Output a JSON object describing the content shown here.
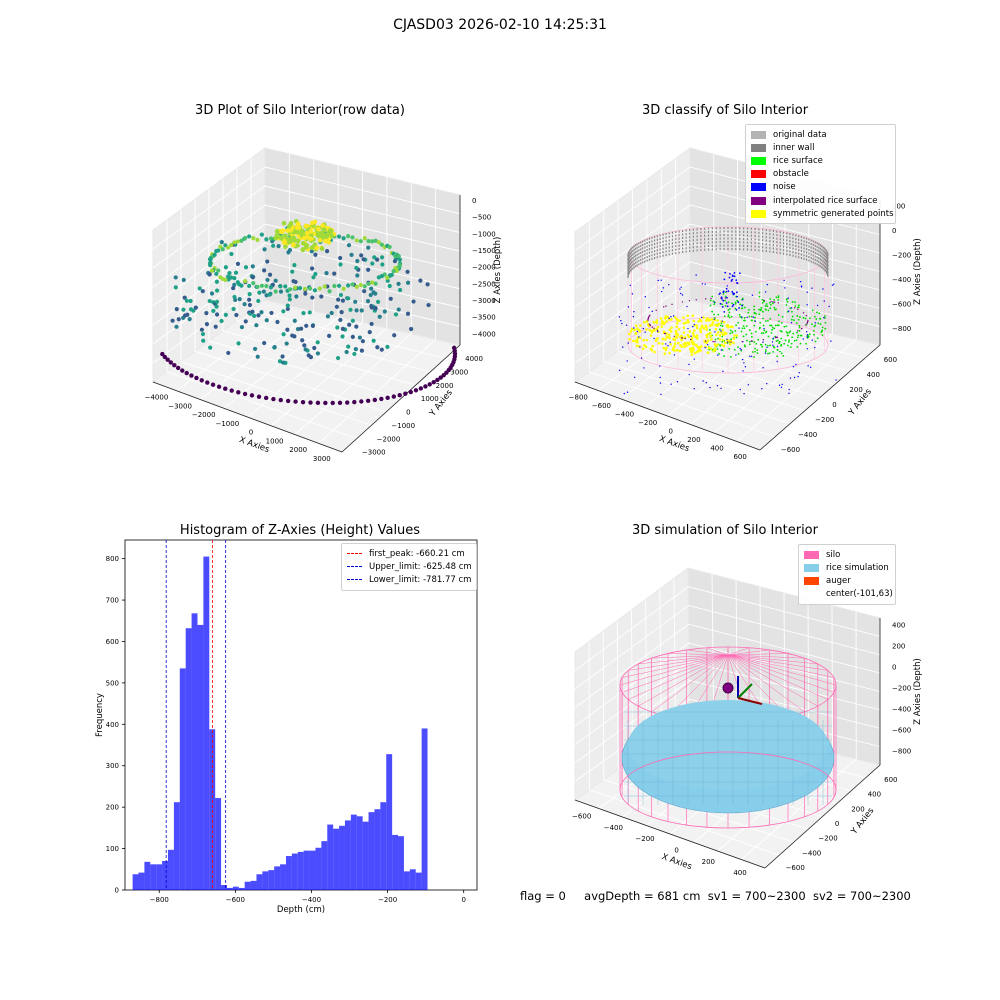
{
  "suptitle": "CJASD03 2026-02-10 14:25:31",
  "panels": {
    "raw": {
      "title": "3D Plot of Silo Interior(row data)",
      "x_label": "X Axies",
      "y_label": "Y Axies",
      "z_label": "Z Axies (Depth)",
      "x_ticks": [
        "−4000",
        "−3000",
        "−2000",
        "−1000",
        "0",
        "1000",
        "2000",
        "3000"
      ],
      "y_ticks": [
        "−3000",
        "−2000",
        "−1000",
        "0",
        "1000",
        "2000",
        "3000",
        "4000"
      ],
      "z_ticks": [
        "0",
        "−500",
        "−1000",
        "−1500",
        "−2000",
        "−2500",
        "−3000",
        "−3500",
        "−4000"
      ]
    },
    "classify": {
      "title": "3D classify of Silo Interior",
      "x_label": "X Axies",
      "y_label": "Y Axies",
      "z_label": "Z Axies (Depth)",
      "x_ticks": [
        "−800",
        "−600",
        "−400",
        "−200",
        "0",
        "200",
        "400",
        "600"
      ],
      "y_ticks": [
        "−600",
        "−400",
        "−200",
        "0",
        "200",
        "400",
        "600"
      ],
      "z_ticks": [
        "200",
        "0",
        "−200",
        "−400",
        "−600",
        "−800"
      ],
      "legend": [
        {
          "label": "original data",
          "color": "#b3b3b3"
        },
        {
          "label": "inner wall",
          "color": "#808080"
        },
        {
          "label": "rice surface",
          "color": "#00ff00"
        },
        {
          "label": "obstacle",
          "color": "#ff0000"
        },
        {
          "label": "noise",
          "color": "#0000ff"
        },
        {
          "label": "interpolated rice surface",
          "color": "#800080"
        },
        {
          "label": "symmetric generated points",
          "color": "#ffff00"
        }
      ]
    },
    "simulation": {
      "title": "3D simulation of Silo Interior",
      "x_label": "X Axies",
      "y_label": "Y Axies",
      "z_label": "Z Axies (Depth)",
      "x_ticks": [
        "−600",
        "−400",
        "−200",
        "0",
        "200",
        "400"
      ],
      "y_ticks": [
        "−600",
        "−400",
        "−200",
        "0",
        "200",
        "400",
        "600"
      ],
      "z_ticks": [
        "400",
        "200",
        "0",
        "−200",
        "−400",
        "−600",
        "−800"
      ],
      "legend": [
        {
          "label": "silo",
          "color": "#ff69b4"
        },
        {
          "label": "rice simulation",
          "color": "#87ceeb"
        },
        {
          "label": "auger",
          "color": "#ff4500"
        },
        {
          "label": "center(-101,63)",
          "color": ""
        }
      ]
    }
  },
  "footer": {
    "flag": "flag = 0",
    "avg_depth": "avgDepth = 681 cm",
    "sv1": "sv1 = 700~2300",
    "sv2": "sv2 = 700~2300"
  },
  "chart_data": [
    {
      "type": "scatter",
      "title": "3D Plot of Silo Interior(row data)",
      "xlabel": "X Axies",
      "ylabel": "Y Axies",
      "zlabel": "Z Axies (Depth)",
      "xlim": [
        -4000,
        3000
      ],
      "ylim": [
        -3000,
        4000
      ],
      "zlim": [
        -4000,
        0
      ],
      "colormap": "viridis"
    },
    {
      "type": "scatter",
      "title": "3D classify of Silo Interior",
      "xlabel": "X Axies",
      "ylabel": "Y Axies",
      "zlabel": "Z Axies (Depth)",
      "xlim": [
        -800,
        600
      ],
      "ylim": [
        -600,
        600
      ],
      "zlim": [
        -800,
        200
      ],
      "series": [
        {
          "name": "original data",
          "color": "#b3b3b3"
        },
        {
          "name": "inner wall",
          "color": "#808080"
        },
        {
          "name": "rice surface",
          "color": "#00ff00"
        },
        {
          "name": "obstacle",
          "color": "#ff0000"
        },
        {
          "name": "noise",
          "color": "#0000ff"
        },
        {
          "name": "interpolated rice surface",
          "color": "#800080"
        },
        {
          "name": "symmetric generated points",
          "color": "#ffff00"
        }
      ]
    },
    {
      "type": "bar",
      "title": "Histogram of Z-Axies (Height) Values",
      "xlabel": "Depth (cm)",
      "ylabel": "Frequency",
      "xlim": [
        -890,
        35
      ],
      "ylim": [
        0,
        845
      ],
      "x_ticks": [
        -800,
        -600,
        -400,
        -200,
        0
      ],
      "y_ticks": [
        0,
        100,
        200,
        300,
        400,
        500,
        600,
        700,
        800
      ],
      "bin_start": -870,
      "bin_width": 15.5,
      "bar_color": "#0000ff",
      "bar_alpha": 0.7,
      "values": [
        38,
        42,
        68,
        62,
        62,
        70,
        97,
        212,
        535,
        632,
        668,
        640,
        805,
        388,
        222,
        12,
        5,
        8,
        5,
        20,
        22,
        38,
        45,
        48,
        57,
        62,
        82,
        88,
        92,
        95,
        95,
        102,
        118,
        158,
        148,
        155,
        168,
        182,
        178,
        165,
        188,
        195,
        212,
        328,
        133,
        130,
        45,
        50,
        42,
        390
      ],
      "vlines": [
        {
          "label": "first_peak: -660.21 cm",
          "x": -660.21,
          "color": "#ff0000"
        },
        {
          "label": "Upper_limit: -625.48 cm",
          "x": -625.48,
          "color": "#0000cc"
        },
        {
          "label": "Lower_limit: -781.77 cm",
          "x": -781.77,
          "color": "#0000cc"
        }
      ]
    },
    {
      "type": "surface",
      "title": "3D simulation of Silo Interior",
      "xlabel": "X Axies",
      "ylabel": "Y Axies",
      "zlabel": "Z Axies (Depth)",
      "xlim": [
        -700,
        500
      ],
      "ylim": [
        -600,
        600
      ],
      "zlim": [
        -800,
        400
      ],
      "series": [
        {
          "name": "silo",
          "color": "#ff69b4"
        },
        {
          "name": "rice simulation",
          "color": "#87ceeb"
        },
        {
          "name": "auger",
          "color": "#ff4500"
        },
        {
          "name": "center(-101,63)",
          "color": ""
        }
      ]
    }
  ]
}
